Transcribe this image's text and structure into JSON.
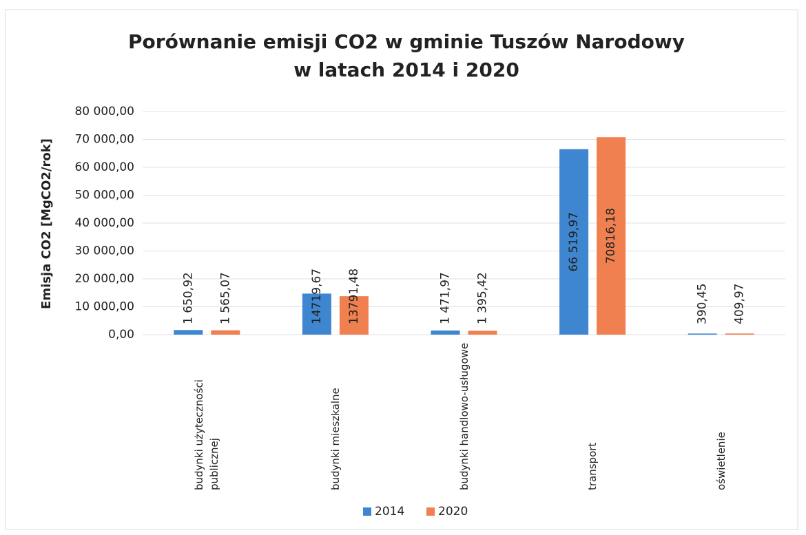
{
  "chart_data": {
    "type": "bar",
    "title": [
      "Porównanie emisji CO2  w gminie Tuszów Narodowy",
      "w latach 2014 i 2020"
    ],
    "y_label": "Emisja CO2 [MgCO2/rok]",
    "categories": [
      "budynki użyteczności publicznej",
      "budynki mieszkalne",
      "budynki handlowo-usługowe",
      "transport",
      "oświetlenie"
    ],
    "series": [
      {
        "name": "2014",
        "color": "#3f86d0",
        "values": [
          1650.92,
          14719.67,
          1471.97,
          66519.97,
          390.45
        ],
        "value_labels": [
          "1 650,92",
          "14719,67",
          "1 471,97",
          "66 519,97",
          "390,45"
        ]
      },
      {
        "name": "2020",
        "color": "#f0804f",
        "values": [
          1565.07,
          13791.48,
          1395.42,
          70816.18,
          409.97
        ],
        "value_labels": [
          "1 565,07",
          "13791,48",
          "1 395,42",
          "70816,18",
          "409,97"
        ]
      }
    ],
    "ylim": [
      0,
      80000
    ],
    "yticks": [
      {
        "value": 0,
        "label": "0,00"
      },
      {
        "value": 10000,
        "label": "10 000,00"
      },
      {
        "value": 20000,
        "label": "20 000,00"
      },
      {
        "value": 30000,
        "label": "30 000,00"
      },
      {
        "value": 40000,
        "label": "40 000,00"
      },
      {
        "value": 50000,
        "label": "50 000,00"
      },
      {
        "value": 60000,
        "label": "60 000,00"
      },
      {
        "value": 70000,
        "label": "70 000,00"
      },
      {
        "value": 80000,
        "label": "80 000,00"
      }
    ],
    "grid": true,
    "legend": "bottom"
  }
}
